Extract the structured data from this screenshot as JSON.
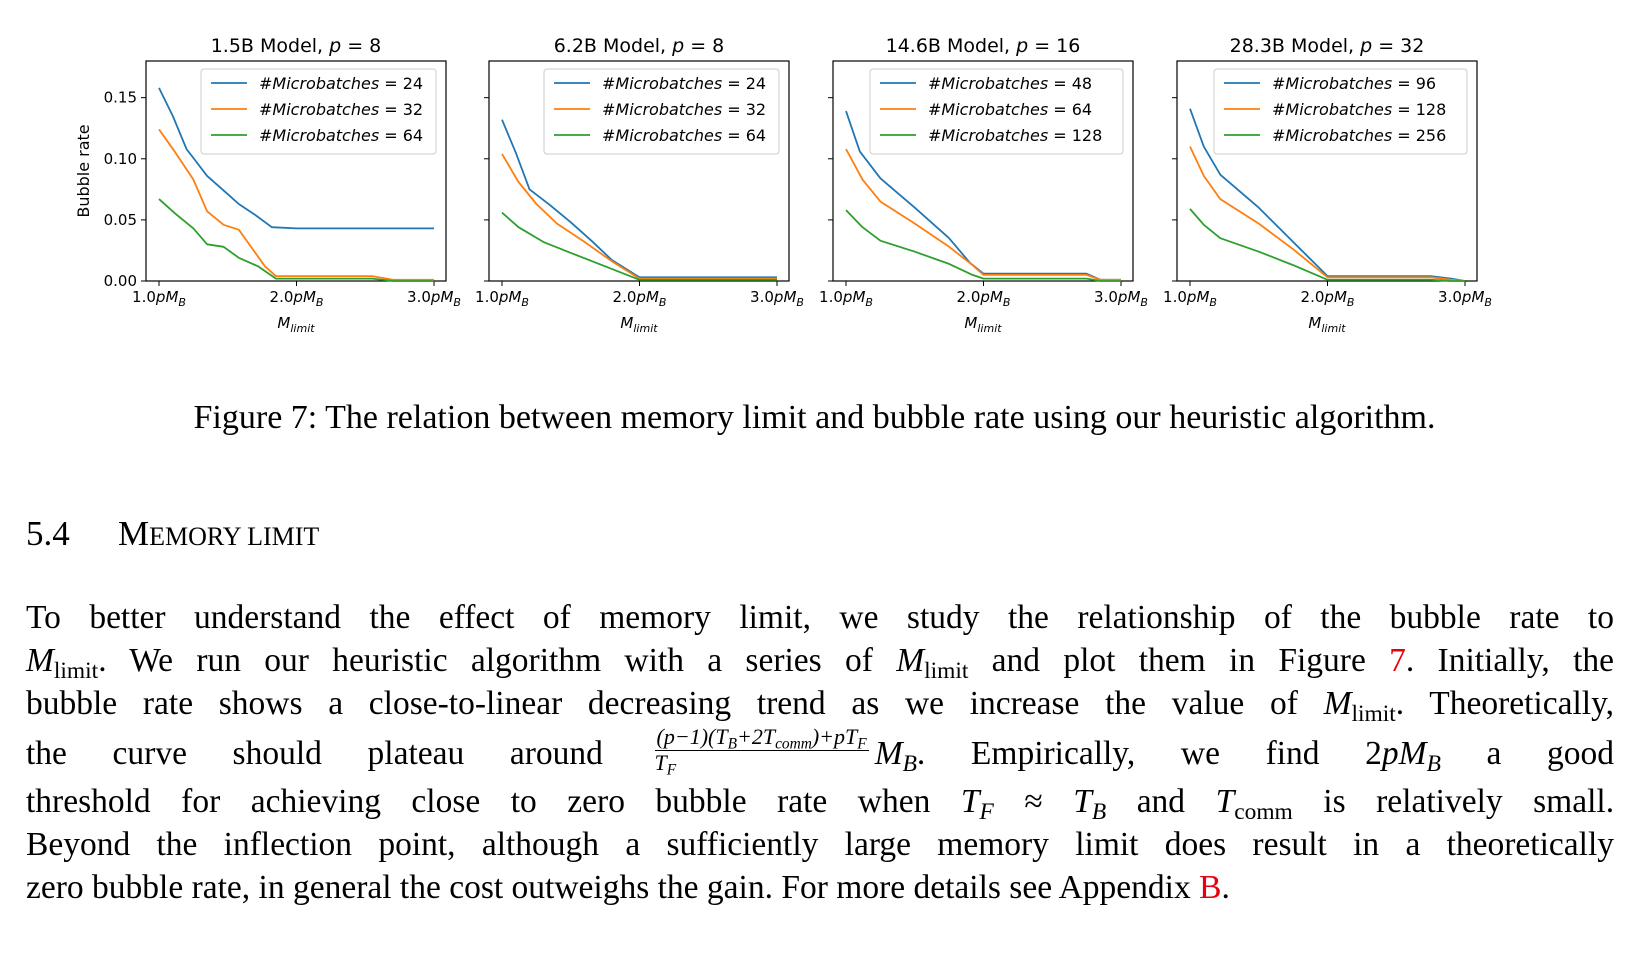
{
  "chart_data": [
    {
      "type": "line",
      "title": "1.5B Model, p = 8",
      "title_parts": [
        "1.5B Model, ",
        "p",
        " = 8"
      ],
      "xlabel": "M_limit",
      "ylabel": "Bubble rate",
      "xlim": [
        1.0,
        3.0
      ],
      "ylim": [
        0,
        0.18
      ],
      "xticks": [
        1.0,
        2.0,
        3.0
      ],
      "xtick_labels": [
        "1.0pM_B",
        "2.0pM_B",
        "3.0pM_B"
      ],
      "yticks": [
        0.0,
        0.05,
        0.1,
        0.15
      ],
      "ytick_labels": [
        "0.00",
        "0.05",
        "0.10",
        "0.15"
      ],
      "legend_location": "upper right",
      "series": [
        {
          "name": "#Microbatches = 24",
          "legend_left": "#Microbatches",
          "legend_right": "24",
          "color": "#1f77b4",
          "x": [
            1.0,
            1.1,
            1.2,
            1.35,
            1.5,
            1.58,
            1.7,
            1.82,
            2.0,
            2.5,
            3.0
          ],
          "y": [
            0.158,
            0.135,
            0.108,
            0.086,
            0.071,
            0.063,
            0.054,
            0.044,
            0.043,
            0.043,
            0.043
          ]
        },
        {
          "name": "#Microbatches = 32",
          "legend_left": "#Microbatches",
          "legend_right": "32",
          "color": "#ff7f0e",
          "x": [
            1.0,
            1.12,
            1.25,
            1.35,
            1.47,
            1.58,
            1.65,
            1.77,
            1.85,
            2.0,
            2.3,
            2.55,
            2.7,
            3.0
          ],
          "y": [
            0.124,
            0.105,
            0.083,
            0.057,
            0.046,
            0.042,
            0.031,
            0.012,
            0.004,
            0.004,
            0.004,
            0.004,
            0.001,
            0.001
          ]
        },
        {
          "name": "#Microbatches = 64",
          "legend_left": "#Microbatches",
          "legend_right": "64",
          "color": "#2ca02c",
          "x": [
            1.0,
            1.12,
            1.25,
            1.35,
            1.47,
            1.58,
            1.72,
            1.85,
            2.0,
            2.3,
            2.55,
            2.7,
            3.0
          ],
          "y": [
            0.067,
            0.055,
            0.043,
            0.03,
            0.028,
            0.019,
            0.012,
            0.002,
            0.002,
            0.002,
            0.002,
            0.0,
            0.0
          ]
        }
      ]
    },
    {
      "type": "line",
      "title": "6.2B Model, p = 8",
      "title_parts": [
        "6.2B Model, ",
        "p",
        " = 8"
      ],
      "xlabel": "M_limit",
      "xlim": [
        1.0,
        3.0
      ],
      "ylim": [
        0,
        0.18
      ],
      "xticks": [
        1.0,
        2.0,
        3.0
      ],
      "xtick_labels": [
        "1.0pM_B",
        "2.0pM_B",
        "3.0pM_B"
      ],
      "legend_location": "upper right",
      "series": [
        {
          "name": "#Microbatches = 24",
          "legend_left": "#Microbatches",
          "legend_right": "24",
          "color": "#1f77b4",
          "x": [
            1.0,
            1.1,
            1.2,
            1.35,
            1.5,
            1.65,
            1.8,
            2.0,
            3.0
          ],
          "y": [
            0.132,
            0.105,
            0.075,
            0.062,
            0.048,
            0.033,
            0.017,
            0.003,
            0.003
          ]
        },
        {
          "name": "#Microbatches = 32",
          "legend_left": "#Microbatches",
          "legend_right": "32",
          "color": "#ff7f0e",
          "x": [
            1.0,
            1.12,
            1.25,
            1.4,
            1.6,
            1.8,
            2.0,
            3.0
          ],
          "y": [
            0.104,
            0.081,
            0.063,
            0.047,
            0.032,
            0.016,
            0.002,
            0.002
          ]
        },
        {
          "name": "#Microbatches = 64",
          "legend_left": "#Microbatches",
          "legend_right": "64",
          "color": "#2ca02c",
          "x": [
            1.0,
            1.12,
            1.3,
            1.5,
            1.75,
            2.0,
            3.0
          ],
          "y": [
            0.056,
            0.044,
            0.032,
            0.023,
            0.012,
            0.001,
            0.001
          ]
        }
      ]
    },
    {
      "type": "line",
      "title": "14.6B Model, p = 16",
      "title_parts": [
        "14.6B Model, ",
        "p",
        " = 16"
      ],
      "xlabel": "M_limit",
      "xlim": [
        1.0,
        3.0
      ],
      "ylim": [
        0,
        0.18
      ],
      "xticks": [
        1.0,
        2.0,
        3.0
      ],
      "xtick_labels": [
        "1.0pM_B",
        "2.0pM_B",
        "3.0pM_B"
      ],
      "legend_location": "upper right",
      "series": [
        {
          "name": "#Microbatches = 48",
          "legend_left": "#Microbatches",
          "legend_right": "48",
          "color": "#1f77b4",
          "x": [
            1.0,
            1.1,
            1.25,
            1.5,
            1.75,
            1.9,
            2.0,
            2.5,
            2.75,
            2.85,
            3.0
          ],
          "y": [
            0.139,
            0.106,
            0.084,
            0.06,
            0.035,
            0.015,
            0.006,
            0.006,
            0.006,
            0.001,
            0.001
          ]
        },
        {
          "name": "#Microbatches = 64",
          "legend_left": "#Microbatches",
          "legend_right": "64",
          "color": "#ff7f0e",
          "x": [
            1.0,
            1.12,
            1.25,
            1.5,
            1.75,
            1.92,
            2.0,
            2.5,
            2.75,
            2.85,
            3.0
          ],
          "y": [
            0.108,
            0.083,
            0.065,
            0.047,
            0.028,
            0.013,
            0.005,
            0.005,
            0.005,
            0.001,
            0.001
          ]
        },
        {
          "name": "#Microbatches = 128",
          "legend_left": "#Microbatches",
          "legend_right": "128",
          "color": "#2ca02c",
          "x": [
            1.0,
            1.12,
            1.25,
            1.5,
            1.75,
            1.92,
            2.0,
            2.5,
            2.75,
            2.85,
            3.0
          ],
          "y": [
            0.058,
            0.044,
            0.033,
            0.024,
            0.014,
            0.005,
            0.002,
            0.002,
            0.002,
            0.0,
            0.0
          ]
        }
      ]
    },
    {
      "type": "line",
      "title": "28.3B Model, p = 32",
      "title_parts": [
        "28.3B Model, ",
        "p",
        " = 32"
      ],
      "xlabel": "M_limit",
      "xlim": [
        1.0,
        3.0
      ],
      "ylim": [
        0,
        0.18
      ],
      "xticks": [
        1.0,
        2.0,
        3.0
      ],
      "xtick_labels": [
        "1.0pM_B",
        "2.0pM_B",
        "3.0pM_B"
      ],
      "legend_location": "upper right",
      "series": [
        {
          "name": "#Microbatches = 96",
          "legend_left": "#Microbatches",
          "legend_right": "96",
          "color": "#1f77b4",
          "x": [
            1.0,
            1.1,
            1.22,
            1.5,
            1.75,
            2.0,
            2.75,
            2.9,
            3.0
          ],
          "y": [
            0.141,
            0.11,
            0.087,
            0.06,
            0.032,
            0.004,
            0.004,
            0.002,
            0.0
          ]
        },
        {
          "name": "#Microbatches = 128",
          "legend_left": "#Microbatches",
          "legend_right": "128",
          "color": "#ff7f0e",
          "x": [
            1.0,
            1.1,
            1.22,
            1.5,
            1.75,
            2.0,
            2.75,
            2.9,
            3.0
          ],
          "y": [
            0.11,
            0.086,
            0.067,
            0.047,
            0.026,
            0.003,
            0.003,
            0.001,
            0.0
          ]
        },
        {
          "name": "#Microbatches = 256",
          "legend_left": "#Microbatches",
          "legend_right": "256",
          "color": "#2ca02c",
          "x": [
            1.0,
            1.1,
            1.22,
            1.5,
            1.75,
            2.0,
            2.75,
            2.9,
            3.0
          ],
          "y": [
            0.059,
            0.046,
            0.035,
            0.024,
            0.013,
            0.001,
            0.001,
            0.0,
            0.0
          ]
        }
      ]
    }
  ],
  "caption": "Figure 7: The relation between memory limit and bubble rate using our heuristic algorithm.",
  "section": {
    "number": "5.4",
    "title": "Memory limit",
    "title_first": "M",
    "title_rest": "EMORY LIMIT"
  },
  "paragraph": {
    "l1": "To better understand the effect of memory limit, we study the relationship of the bubble rate to",
    "l2_a": ". We run our heuristic algorithm with a series of",
    "l2_b": "and plot them in Figure",
    "l2_ref": "7",
    "l2_c": ". Initially, the",
    "l3_a": "bubble rate shows a close-to-linear decreasing trend as we increase the value of",
    "l3_b": ". Theoretically,",
    "l4_a": "the curve should plateau around",
    "l4_frac_num": "(p−1)(T_B+2T_comm)+pT_F",
    "l4_frac_den": "T_F",
    "l4_b": "M_B",
    "l4_c": ". Empirically, we find",
    "l4_d": "2pM_B",
    "l4_e": "a good",
    "l5_a": "threshold for achieving close to zero bubble rate when",
    "l5_b": "T_F ≈ T_B",
    "l5_c": "and",
    "l5_d": "T_comm",
    "l5_e": "is relatively small.",
    "l6": "Beyond the inflection point, although a sufficiently large memory limit does result in a theoretically",
    "l7_a": "zero bubble rate, in general the cost outweighs the gain. For more details see Appendix",
    "l7_ref": "B",
    "l7_b": "."
  },
  "math": {
    "M": "M",
    "limit": "limit",
    "comm": "comm",
    "B": "B",
    "F": "F",
    "T": "T",
    "p": "p",
    "approx": "≈",
    "two": "2",
    "frac_num_1": "(p−1)(T",
    "frac_num_2": "+2T",
    "frac_num_3": ")+pT",
    "frac_den": "T"
  }
}
